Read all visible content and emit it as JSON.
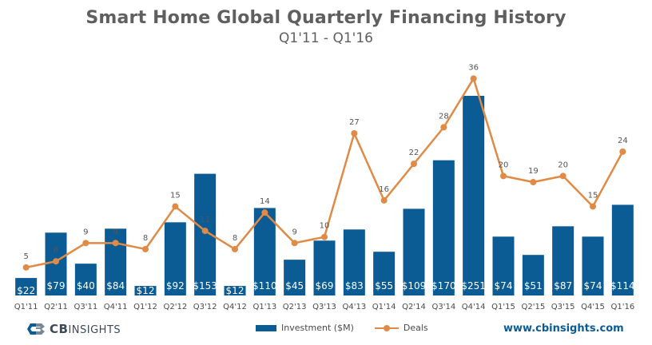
{
  "header": {
    "title": "Smart Home Global Quarterly Financing History",
    "subtitle": "Q1'11 - Q1'16"
  },
  "legend": {
    "investment": "Investment ($M)",
    "deals": "Deals"
  },
  "branding": {
    "logo_bold": "CB",
    "logo_rest": "INSIGHTS",
    "url": "www.cbinsights.com"
  },
  "colors": {
    "bar": "#0b5b95",
    "line": "#e08a45",
    "axis_text": "#4a4a4a"
  },
  "chart_data": {
    "type": "bar",
    "title": "Smart Home Global Quarterly Financing History",
    "subtitle": "Q1'11 - Q1'16",
    "categories": [
      "Q1'11",
      "Q2'11",
      "Q3'11",
      "Q4'11",
      "Q1'12",
      "Q2'12",
      "Q3'12",
      "Q4'12",
      "Q1'13",
      "Q2'13",
      "Q3'13",
      "Q4'13",
      "Q1'14",
      "Q2'14",
      "Q3'14",
      "Q4'14",
      "Q1'15",
      "Q2'15",
      "Q3'15",
      "Q4'15",
      "Q1'16"
    ],
    "series": [
      {
        "name": "Investment ($M)",
        "type": "bar",
        "values": [
          22,
          79,
          40,
          84,
          12,
          92,
          153,
          12,
          110,
          45,
          69,
          83,
          55,
          109,
          170,
          251,
          74,
          51,
          87,
          74,
          114
        ],
        "labels": [
          "$22",
          "$79",
          "$40",
          "$84",
          "$12",
          "$92",
          "$153",
          "$12",
          "$110",
          "$45",
          "$69",
          "$83",
          "$55",
          "$109",
          "$170",
          "$251",
          "$74",
          "$51",
          "$87",
          "$74",
          "$114"
        ]
      },
      {
        "name": "Deals",
        "type": "line",
        "values": [
          5,
          6,
          9,
          9,
          8,
          15,
          11,
          8,
          14,
          9,
          10,
          27,
          16,
          22,
          28,
          36,
          20,
          19,
          20,
          15,
          24
        ]
      }
    ],
    "legend_position": "bottom"
  }
}
